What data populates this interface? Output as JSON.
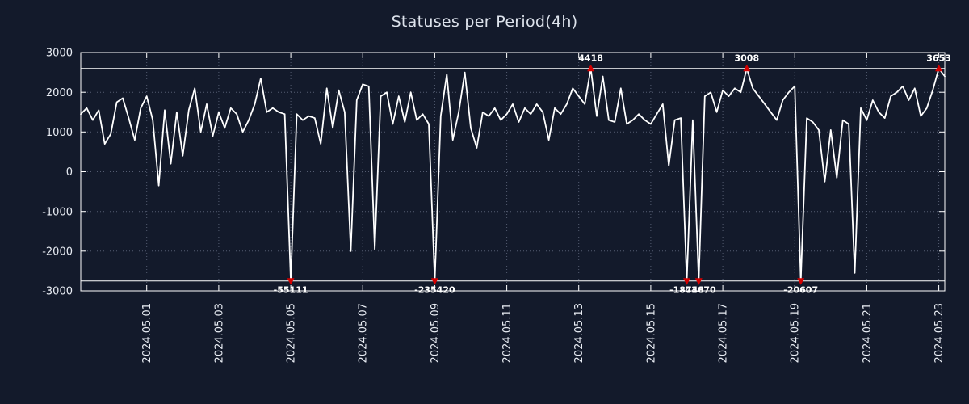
{
  "title": "Statuses per Period(4h)",
  "colors": {
    "background": "#131a2b",
    "line": "#ffffff",
    "marker": "#d40000",
    "text": "#e8ecf3",
    "grid": "#6a7389"
  },
  "chart_data": {
    "type": "line",
    "title": "Statuses per Period(4h)",
    "ylabel": "",
    "xlabel": "",
    "ylim": [
      -3000,
      3000
    ],
    "y_ticks": [
      3000,
      2000,
      1000,
      0,
      -1000,
      -2000,
      -3000
    ],
    "x_tick_labels": [
      "2024.05.01",
      "2024.05.03",
      "2024.05.05",
      "2024.05.07",
      "2024.05.09",
      "2024.05.11",
      "2024.05.13",
      "2024.05.15",
      "2024.05.17",
      "2024.05.19",
      "2024.05.21",
      "2024.05.23"
    ],
    "x_tick_indices": [
      11,
      23,
      35,
      47,
      59,
      71,
      83,
      95,
      107,
      119,
      131,
      143
    ],
    "sample_interval_hours": 4,
    "grid": true,
    "legend": "none",
    "clip_top": 2600,
    "clip_bottom": -2750,
    "values": [
      1450,
      1600,
      1300,
      1550,
      700,
      950,
      1750,
      1850,
      1350,
      800,
      1600,
      1900,
      1300,
      -350,
      1550,
      200,
      1500,
      400,
      1550,
      2100,
      1000,
      1700,
      900,
      1500,
      1100,
      1600,
      1450,
      1000,
      1300,
      1700,
      2350,
      1500,
      1600,
      1500,
      1450,
      -55111,
      1450,
      1300,
      1400,
      1350,
      700,
      2100,
      1100,
      2050,
      1500,
      -2000,
      1800,
      2200,
      2150,
      -1950,
      1900,
      2000,
      1200,
      1900,
      1250,
      2000,
      1300,
      1450,
      1200,
      -235420,
      1400,
      2450,
      800,
      1500,
      2500,
      1100,
      600,
      1500,
      1400,
      1600,
      1300,
      1450,
      1700,
      1250,
      1600,
      1450,
      1700,
      1500,
      800,
      1600,
      1450,
      1700,
      2100,
      1900,
      1700,
      4418,
      1400,
      2400,
      1300,
      1250,
      2100,
      1200,
      1300,
      1450,
      1300,
      1200,
      1450,
      1700,
      150,
      1300,
      1350,
      -18748,
      1300,
      -43670,
      1900,
      2000,
      1500,
      2050,
      1900,
      2100,
      2000,
      3008,
      2100,
      1900,
      1700,
      1500,
      1300,
      1800,
      2000,
      2150,
      -20607,
      1350,
      1250,
      1050,
      -250,
      1050,
      -150,
      1300,
      1200,
      -2550,
      1600,
      1300,
      1800,
      1500,
      1350,
      1900,
      2000,
      2150,
      1800,
      2100,
      1400,
      1600,
      2050,
      3653,
      2400
    ],
    "annotations": [
      {
        "index": 35,
        "value": -55111,
        "label": "-55111",
        "side": "bottom"
      },
      {
        "index": 59,
        "value": -235420,
        "label": "-235420",
        "side": "bottom"
      },
      {
        "index": 85,
        "value": 4418,
        "label": "4418",
        "side": "top"
      },
      {
        "index": 101,
        "value": -18748,
        "label": "-18748",
        "side": "bottom"
      },
      {
        "index": 103,
        "value": -43670,
        "label": "-43670",
        "side": "bottom"
      },
      {
        "index": 111,
        "value": 3008,
        "label": "3008",
        "side": "top"
      },
      {
        "index": 120,
        "value": -20607,
        "label": "-20607",
        "side": "bottom"
      },
      {
        "index": 143,
        "value": 3653,
        "label": "3653",
        "side": "top"
      }
    ]
  }
}
